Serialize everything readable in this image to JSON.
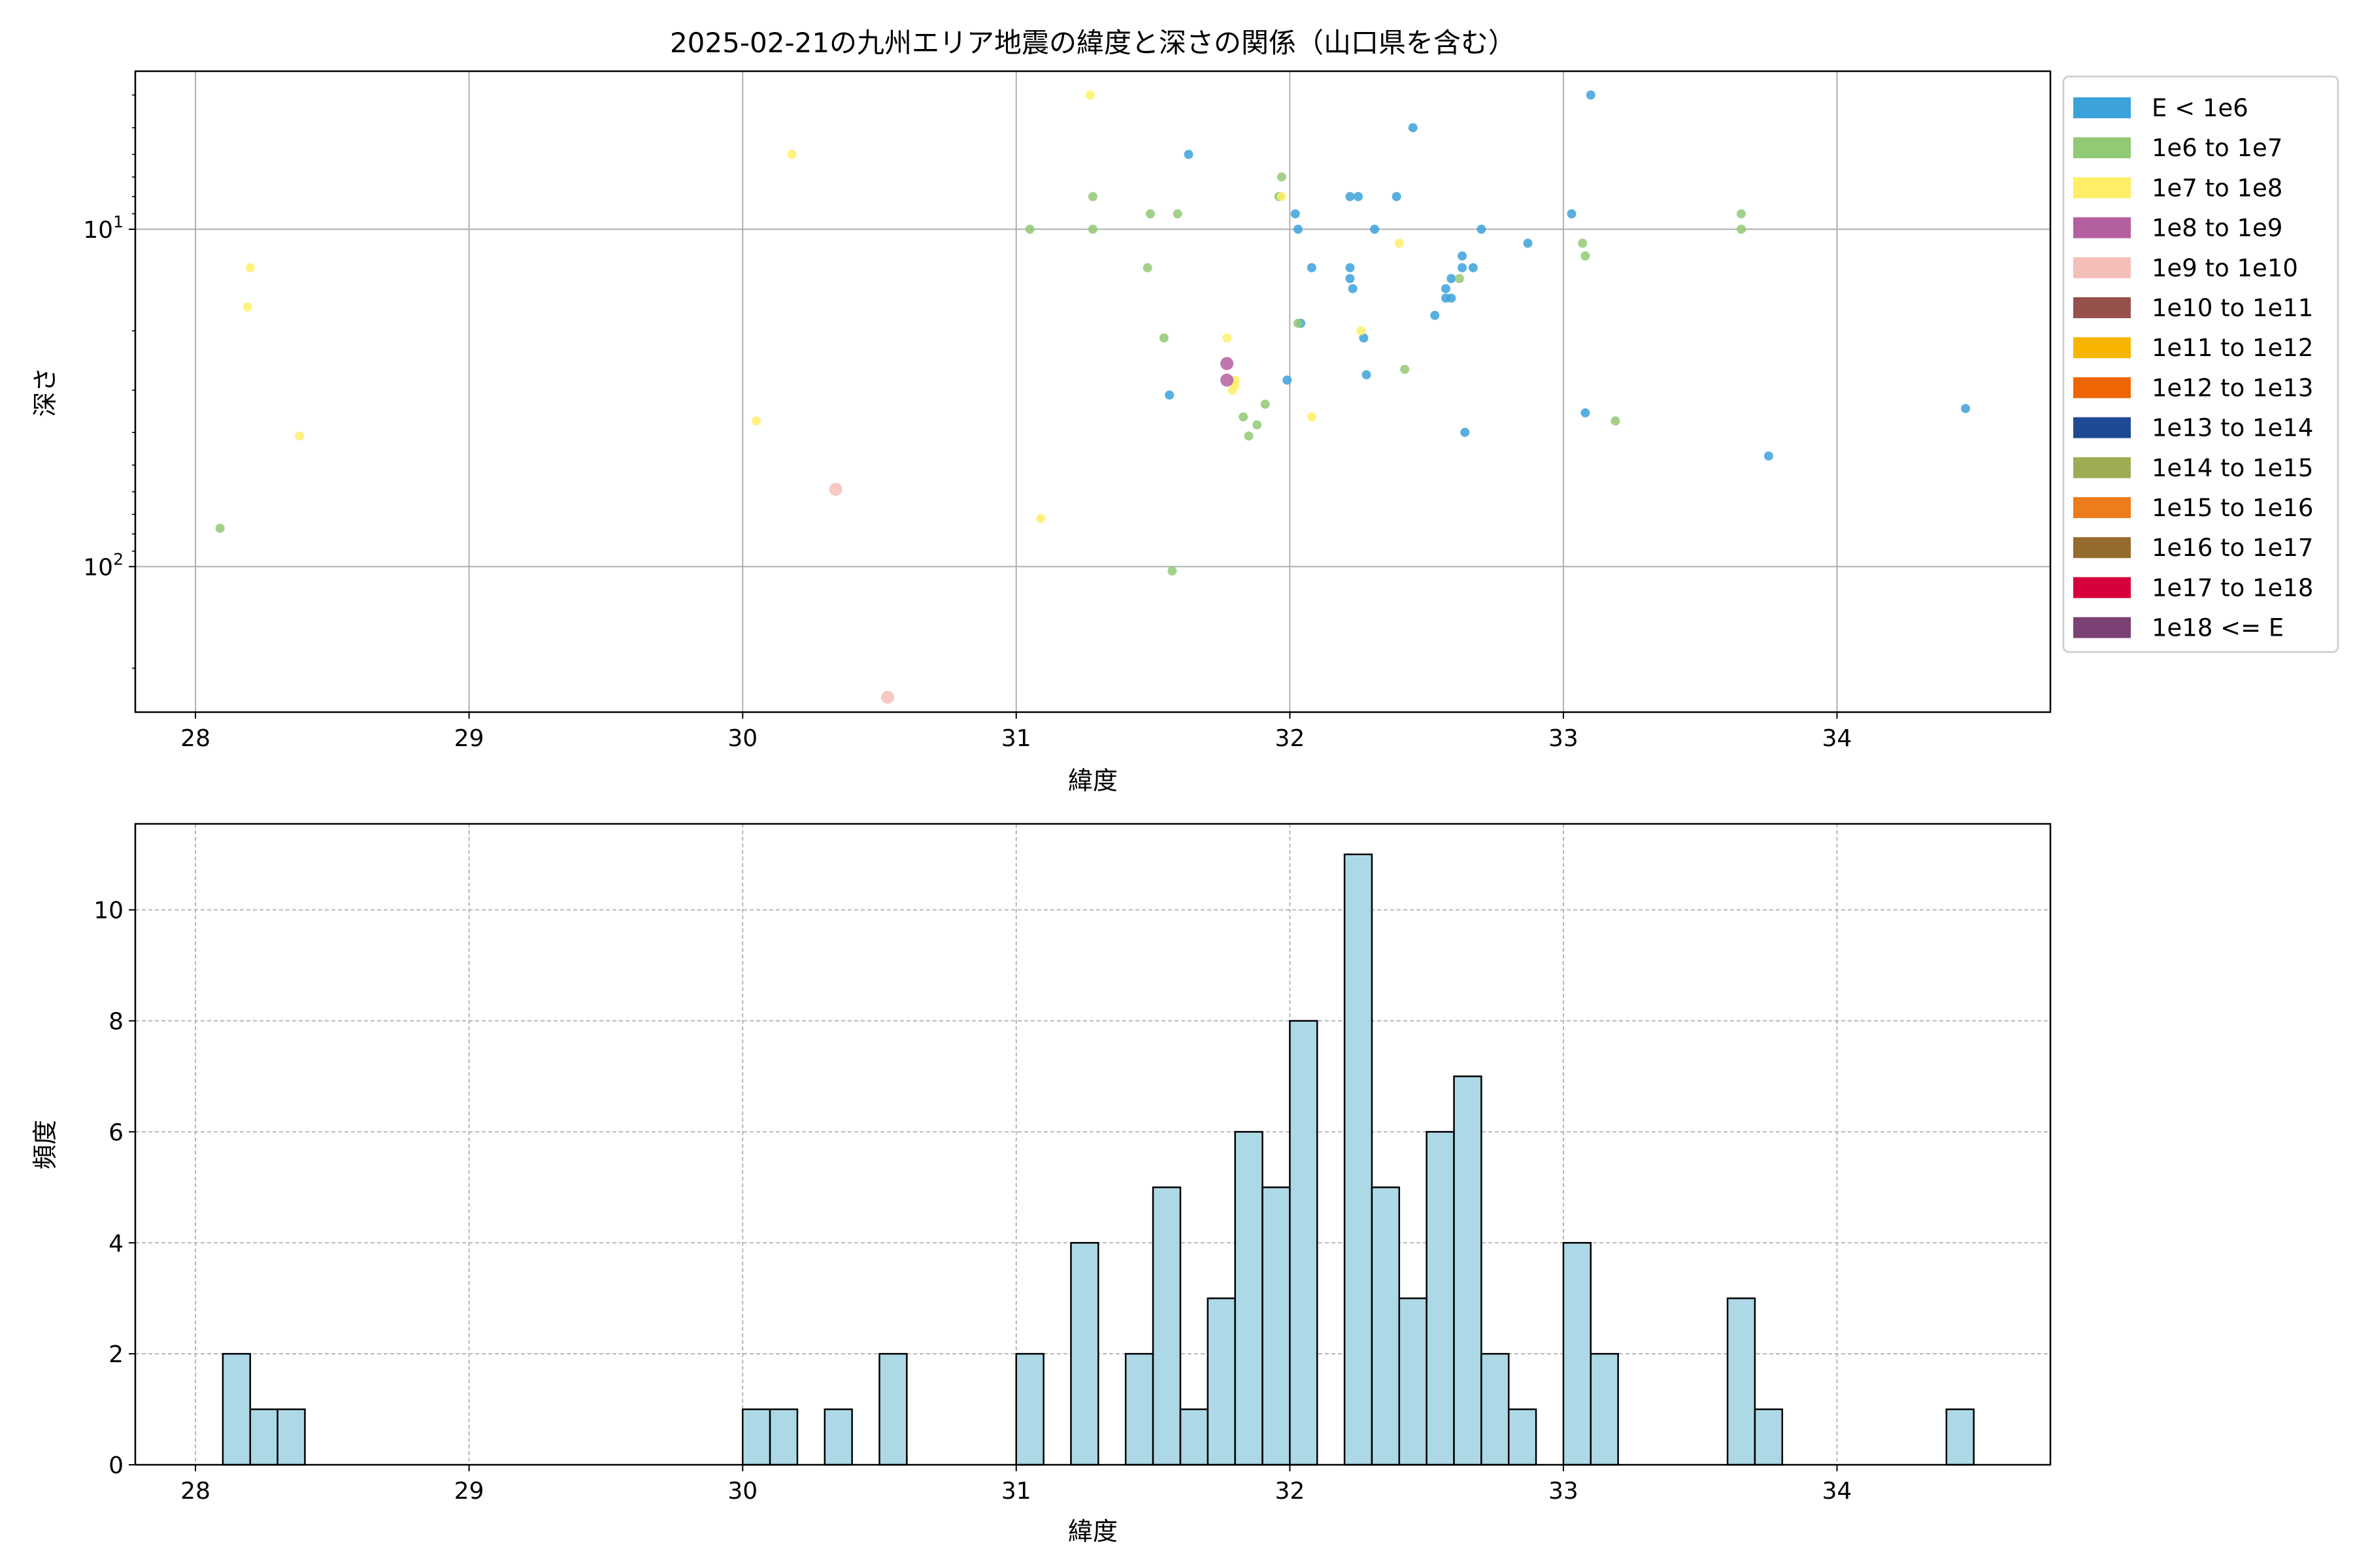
{
  "chart_data": [
    {
      "type": "scatter",
      "title": "2025-02-21の九州エリア地震の緯度と深さの関係（山口県を含む）",
      "xlabel": "緯度",
      "ylabel": "深さ",
      "xlim": [
        27.78,
        34.78
      ],
      "xticks": [
        28,
        29,
        30,
        31,
        32,
        33,
        34
      ],
      "ylim": [
        270,
        3.4
      ],
      "yscale": "log",
      "y_inverted": true,
      "yticks": [
        {
          "value": 10,
          "base": "10",
          "exp": "1"
        },
        {
          "value": 100,
          "base": "10",
          "exp": "2"
        }
      ],
      "grid": true,
      "legend_position": "outside-right",
      "legend": [
        {
          "label": "E < 1e6",
          "color": "#3ca2da"
        },
        {
          "label": "1e6 to 1e7",
          "color": "#92c974"
        },
        {
          "label": "1e7 to 1e8",
          "color": "#ffee66"
        },
        {
          "label": "1e8 to 1e9",
          "color": "#b45f9f"
        },
        {
          "label": "1e9 to 1e10",
          "color": "#f4bfb8"
        },
        {
          "label": "1e10 to 1e11",
          "color": "#96514d"
        },
        {
          "label": "1e11 to 1e12",
          "color": "#f8b500"
        },
        {
          "label": "1e12 to 1e13",
          "color": "#ee6604"
        },
        {
          "label": "1e13 to 1e14",
          "color": "#1e4a95"
        },
        {
          "label": "1e14 to 1e15",
          "color": "#9ead54"
        },
        {
          "label": "1e15 to 1e16",
          "color": "#ed7c1a"
        },
        {
          "label": "1e16 to 1e17",
          "color": "#966b2e"
        },
        {
          "label": "1e17 to 1e18",
          "color": "#d7003a"
        },
        {
          "label": "1e18 <= E",
          "color": "#7b4174"
        }
      ],
      "series": [
        {
          "name": "E < 1e6",
          "color": "#3ca2da",
          "points": [
            [
              31.63,
              6
            ],
            [
              32.45,
              5
            ],
            [
              33.1,
              4
            ],
            [
              32.02,
              9
            ],
            [
              32.03,
              10
            ],
            [
              32.31,
              10
            ],
            [
              32.22,
              8
            ],
            [
              32.25,
              8
            ],
            [
              32.39,
              8
            ],
            [
              32.08,
              13
            ],
            [
              32.22,
              13
            ],
            [
              32.22,
              14
            ],
            [
              32.23,
              15
            ],
            [
              32.04,
              19
            ],
            [
              32.27,
              21
            ],
            [
              31.99,
              28
            ],
            [
              32.28,
              27
            ],
            [
              31.56,
              31
            ],
            [
              32.53,
              18
            ],
            [
              32.57,
              15
            ],
            [
              32.57,
              16
            ],
            [
              32.59,
              14
            ],
            [
              32.59,
              16
            ],
            [
              32.63,
              12
            ],
            [
              32.63,
              13
            ],
            [
              32.67,
              13
            ],
            [
              32.7,
              10
            ],
            [
              32.64,
              40
            ],
            [
              32.87,
              11
            ],
            [
              33.03,
              9
            ],
            [
              33.08,
              35
            ],
            [
              33.75,
              47
            ],
            [
              34.47,
              34
            ]
          ]
        },
        {
          "name": "1e6 to 1e7",
          "color": "#92c974",
          "points": [
            [
              28.09,
              77
            ],
            [
              31.05,
              10
            ],
            [
              31.28,
              8
            ],
            [
              31.28,
              10
            ],
            [
              31.49,
              9
            ],
            [
              31.59,
              9
            ],
            [
              31.48,
              13
            ],
            [
              31.54,
              21
            ],
            [
              31.83,
              36
            ],
            [
              31.88,
              38
            ],
            [
              31.85,
              41
            ],
            [
              31.91,
              33
            ],
            [
              31.57,
              103
            ],
            [
              31.97,
              7
            ],
            [
              31.96,
              8
            ],
            [
              32.03,
              19
            ],
            [
              32.42,
              26
            ],
            [
              32.62,
              14
            ],
            [
              33.07,
              11
            ],
            [
              33.08,
              12
            ],
            [
              33.19,
              37
            ],
            [
              33.65,
              9
            ],
            [
              33.65,
              10
            ]
          ]
        },
        {
          "name": "1e7 to 1e8",
          "color": "#ffee66",
          "points": [
            [
              28.2,
              13
            ],
            [
              28.19,
              17
            ],
            [
              28.38,
              41
            ],
            [
              30.18,
              6
            ],
            [
              30.05,
              37
            ],
            [
              31.09,
              72
            ],
            [
              31.27,
              4
            ],
            [
              31.77,
              21
            ],
            [
              31.8,
              29
            ],
            [
              31.8,
              28
            ],
            [
              31.79,
              30
            ],
            [
              31.97,
              8
            ],
            [
              32.08,
              36
            ],
            [
              32.26,
              20
            ],
            [
              32.4,
              11
            ]
          ]
        },
        {
          "name": "1e8 to 1e9",
          "color": "#b45f9f",
          "points": [
            [
              31.77,
              25
            ],
            [
              31.77,
              28
            ]
          ]
        },
        {
          "name": "1e9 to 1e10",
          "color": "#f4bfb8",
          "points": [
            [
              30.34,
              59
            ],
            [
              30.53,
              244
            ]
          ]
        }
      ]
    },
    {
      "type": "histogram",
      "xlabel": "緯度",
      "ylabel": "頻度",
      "xlim": [
        27.78,
        34.78
      ],
      "xticks": [
        28,
        29,
        30,
        31,
        32,
        33,
        34
      ],
      "ylim": [
        0,
        11.55
      ],
      "yticks": [
        0,
        2,
        4,
        6,
        8,
        10
      ],
      "grid": true,
      "bar_color": "#add8e6",
      "bar_edgecolor": "#000000",
      "bin_width": 0.1,
      "bins": [
        {
          "x0": 28.1,
          "count": 2
        },
        {
          "x0": 28.2,
          "count": 1
        },
        {
          "x0": 28.3,
          "count": 1
        },
        {
          "x0": 30.0,
          "count": 1
        },
        {
          "x0": 30.1,
          "count": 1
        },
        {
          "x0": 30.3,
          "count": 1
        },
        {
          "x0": 30.5,
          "count": 2
        },
        {
          "x0": 31.0,
          "count": 2
        },
        {
          "x0": 31.2,
          "count": 4
        },
        {
          "x0": 31.4,
          "count": 2
        },
        {
          "x0": 31.5,
          "count": 5
        },
        {
          "x0": 31.6,
          "count": 1
        },
        {
          "x0": 31.7,
          "count": 3
        },
        {
          "x0": 31.8,
          "count": 6
        },
        {
          "x0": 31.9,
          "count": 5
        },
        {
          "x0": 32.0,
          "count": 8
        },
        {
          "x0": 32.2,
          "count": 11
        },
        {
          "x0": 32.3,
          "count": 5
        },
        {
          "x0": 32.4,
          "count": 3
        },
        {
          "x0": 32.5,
          "count": 6
        },
        {
          "x0": 32.6,
          "count": 7
        },
        {
          "x0": 32.7,
          "count": 2
        },
        {
          "x0": 32.8,
          "count": 1
        },
        {
          "x0": 33.0,
          "count": 4
        },
        {
          "x0": 33.1,
          "count": 2
        },
        {
          "x0": 33.6,
          "count": 3
        },
        {
          "x0": 33.7,
          "count": 1
        },
        {
          "x0": 34.4,
          "count": 1
        }
      ]
    }
  ]
}
